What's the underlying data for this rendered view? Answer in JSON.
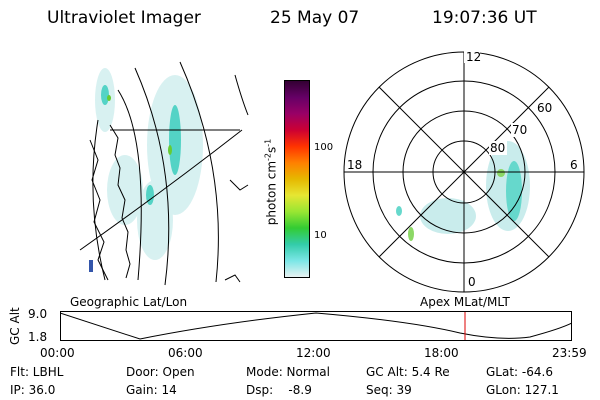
{
  "header": {
    "title": "Ultraviolet Imager",
    "date": "25 May 07",
    "time": "19:07:36 UT"
  },
  "colorbar": {
    "label_main": "photon cm",
    "label_sup1": "-2",
    "label_s": "s",
    "label_sup2": "-1",
    "ticks": [
      "100",
      "10"
    ],
    "colors": [
      "#e8f2f2",
      "#7be6e6",
      "#33ccaa",
      "#33cc33",
      "#99e633",
      "#e6e633",
      "#e6b800",
      "#ff8000",
      "#ff3300",
      "#cc0033",
      "#990066",
      "#660066",
      "#330033"
    ]
  },
  "polar": {
    "labels": {
      "top": "12",
      "left": "18",
      "right": "6",
      "bottom": "0"
    },
    "lat_labels": [
      "60",
      "70",
      "80"
    ]
  },
  "map_labels": {
    "left": "Geographic Lat/Lon",
    "right": "Apex  MLat/MLT"
  },
  "timeline": {
    "axis_label": "GC Alt",
    "y_ticks": [
      "9.0",
      "1.8"
    ],
    "x_ticks": [
      "00:00",
      "06:00",
      "12:00",
      "18:00",
      "23:59"
    ],
    "marker_color": "#dd0000"
  },
  "info": {
    "flt": "Flt: LBHL",
    "ip": "IP: 36.0",
    "door": "Door: Open",
    "gain": "Gain: 14",
    "mode": "Mode: Normal",
    "dsp": "Dsp:    -8.9",
    "gcalt": "GC Alt: 5.4 Re",
    "seq": "Seq: 39",
    "glat": "GLat: -64.6",
    "glon": "GLon: 127.1"
  }
}
